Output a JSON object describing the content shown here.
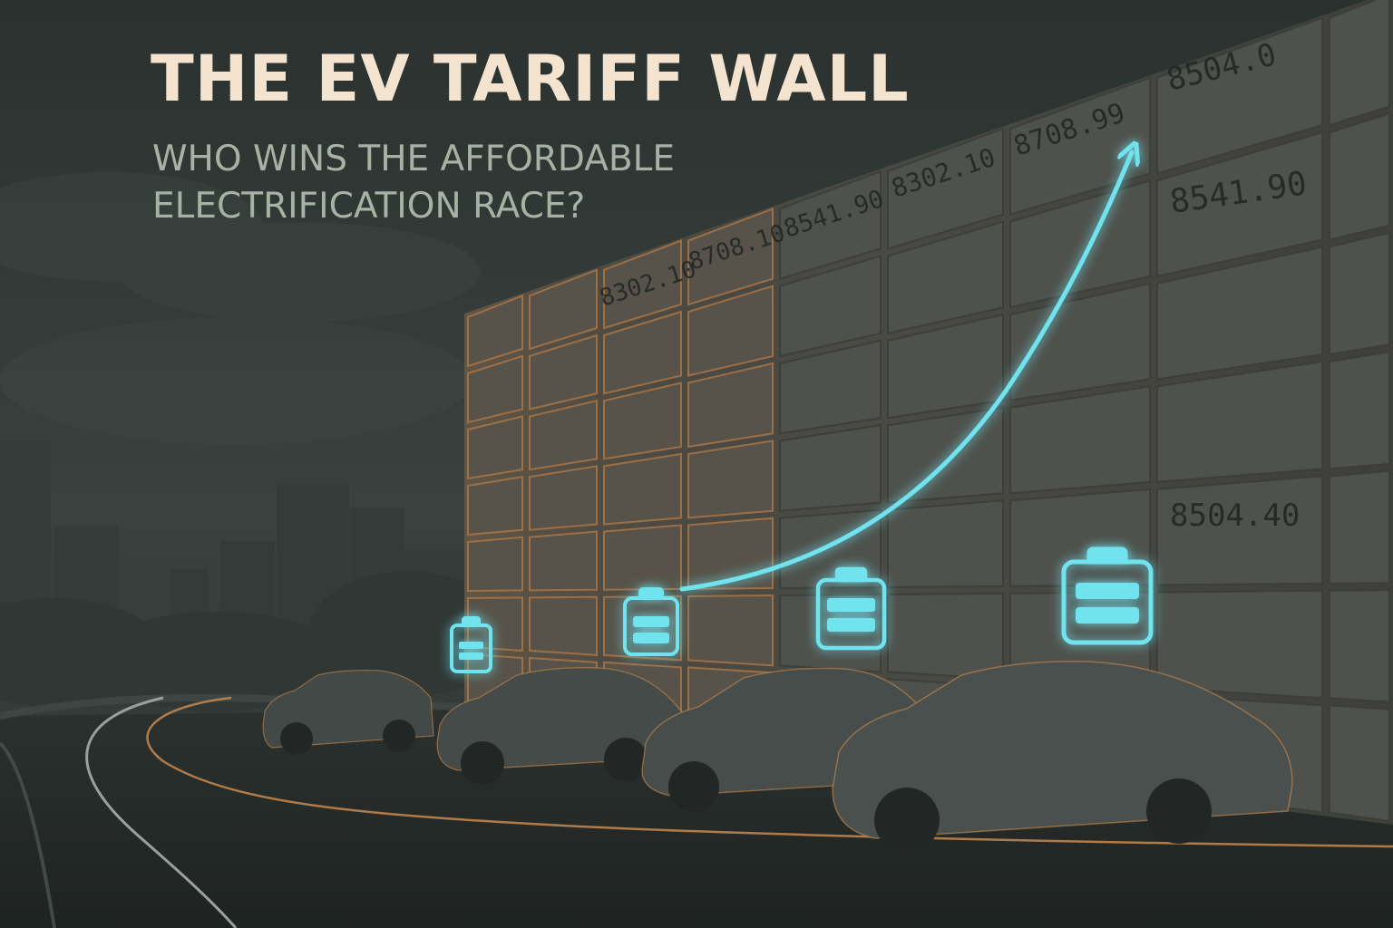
{
  "title": "THE EV TARIFF WALL",
  "subtitle": {
    "line1": "WHO WINS THE AFFORDABLE",
    "line2": "ELECTRIFICATION RACE?"
  },
  "wall_numbers": [
    "8302.10",
    "8708.10",
    "8541.90",
    "8302.10",
    "8708.99",
    "8504.0",
    "8541.90",
    "8504.40"
  ],
  "icons": [
    "skyline-illustration",
    "tariff-wall-grid",
    "rising-arrow-icon",
    "battery-icon",
    "battery-icon",
    "battery-icon",
    "battery-icon",
    "car-illustration",
    "car-illustration",
    "car-illustration",
    "car-illustration"
  ],
  "colors": {
    "background": "#2b3230",
    "title": "#f4e3cf",
    "subtitle": "#a7b2a7",
    "accent_cyan": "#6fe3ee",
    "accent_orange": "#c98a4e"
  }
}
